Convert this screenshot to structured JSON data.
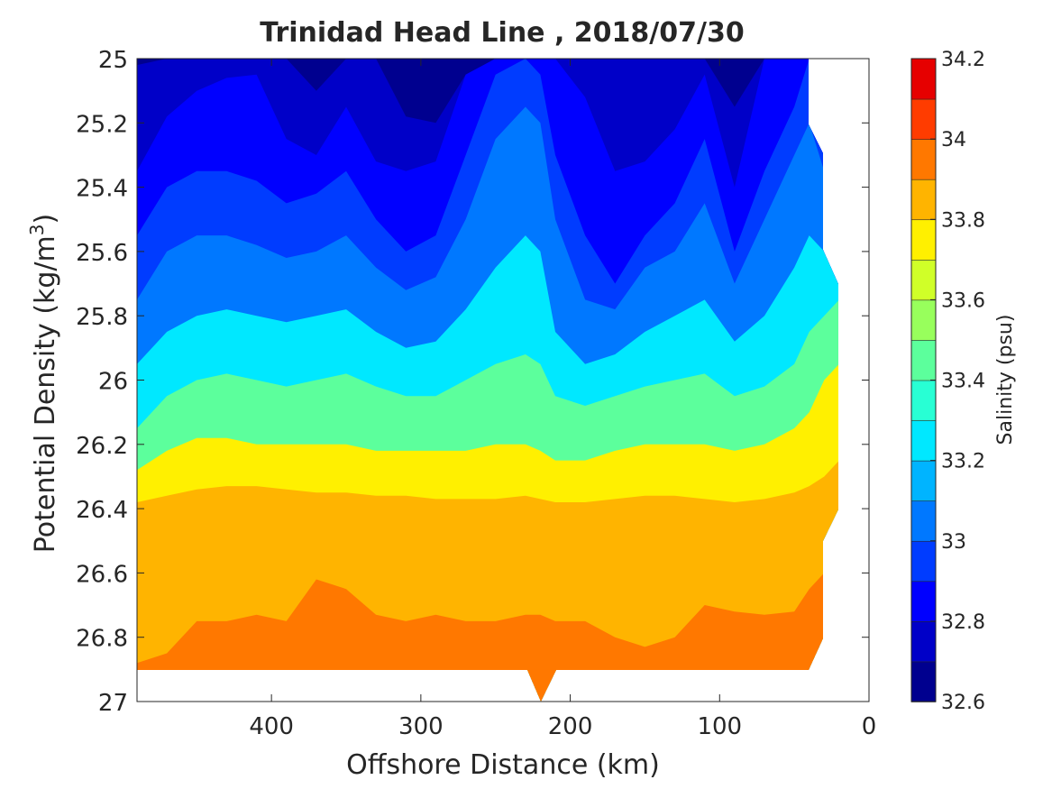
{
  "chart_data": {
    "type": "contour",
    "title": "Trinidad Head Line , 2018/07/30",
    "xlabel": "Offshore Distance (km)",
    "ylabel_main": "Potential Density (kg/m",
    "ylabel_sup": "3",
    "ylabel_close": ")",
    "xlim": [
      490,
      0
    ],
    "ylim": [
      25,
      27
    ],
    "y_reversed": true,
    "x_reversed": true,
    "xticks": [
      400,
      300,
      200,
      100,
      0
    ],
    "yticks": [
      25,
      25.2,
      25.4,
      25.6,
      25.8,
      26,
      26.2,
      26.4,
      26.6,
      26.8,
      27
    ],
    "colorbar": {
      "label": "Salinity (psu)",
      "ticks": [
        32.6,
        32.8,
        33,
        33.2,
        33.4,
        33.6,
        33.8,
        34,
        34.2
      ],
      "range": [
        32.6,
        34.2
      ],
      "levels": 16,
      "colormap": "jet",
      "colors": [
        "#00008f",
        "#0000c8",
        "#0000ff",
        "#003cff",
        "#0078ff",
        "#00b4ff",
        "#00e8ff",
        "#28ffd4",
        "#5cff9c",
        "#98ff5c",
        "#d0ff28",
        "#fff000",
        "#ffb400",
        "#ff7800",
        "#ff3c00",
        "#e60000"
      ]
    },
    "x": [
      490,
      470,
      450,
      430,
      410,
      390,
      370,
      350,
      330,
      310,
      290,
      270,
      250,
      230,
      220,
      210,
      190,
      170,
      150,
      130,
      110,
      90,
      70,
      50,
      40,
      30,
      20
    ],
    "contours": [
      {
        "level": 32.8,
        "y": [
          25.02,
          25.0,
          25.0,
          25.0,
          25.0,
          25.0,
          25.1,
          25.0,
          25.0,
          25.18,
          25.2,
          25.05,
          25.0,
          25.0,
          25.0,
          25.0,
          25.0,
          25.0,
          25.0,
          25.0,
          25.0,
          25.15,
          25.0,
          25.0,
          25.0,
          25.0,
          25.0
        ]
      },
      {
        "level": 32.9,
        "y": [
          25.35,
          25.18,
          25.1,
          25.06,
          25.05,
          25.25,
          25.3,
          25.15,
          25.32,
          25.35,
          25.32,
          25.05,
          25.0,
          25.0,
          25.0,
          25.0,
          25.12,
          25.35,
          25.32,
          25.22,
          25.05,
          25.4,
          25.0,
          25.0,
          25.0,
          25.0,
          25.0
        ]
      },
      {
        "level": 33.0,
        "y": [
          25.55,
          25.4,
          25.35,
          25.35,
          25.38,
          25.45,
          25.42,
          25.35,
          25.5,
          25.6,
          25.55,
          25.3,
          25.05,
          25.0,
          25.05,
          25.3,
          25.55,
          25.7,
          25.55,
          25.45,
          25.25,
          25.6,
          25.35,
          25.15,
          25.0,
          25.0,
          25.0
        ]
      },
      {
        "level": 33.1,
        "y": [
          25.75,
          25.6,
          25.55,
          25.55,
          25.58,
          25.62,
          25.6,
          25.55,
          25.65,
          25.72,
          25.68,
          25.5,
          25.25,
          25.15,
          25.2,
          25.5,
          25.75,
          25.78,
          25.65,
          25.6,
          25.45,
          25.7,
          25.5,
          25.3,
          25.2,
          25.35,
          25.7
        ]
      },
      {
        "level": 33.3,
        "y": [
          25.95,
          25.85,
          25.8,
          25.78,
          25.8,
          25.82,
          25.8,
          25.78,
          25.85,
          25.9,
          25.88,
          25.78,
          25.65,
          25.55,
          25.6,
          25.85,
          25.95,
          25.92,
          25.85,
          25.8,
          25.75,
          25.88,
          25.8,
          25.65,
          25.55,
          25.6,
          25.7
        ]
      },
      {
        "level": 33.5,
        "y": [
          26.15,
          26.05,
          26.0,
          25.98,
          26.0,
          26.02,
          26.0,
          25.98,
          26.02,
          26.05,
          26.05,
          26.0,
          25.95,
          25.92,
          25.95,
          26.05,
          26.08,
          26.05,
          26.02,
          26.0,
          25.98,
          26.05,
          26.02,
          25.95,
          25.85,
          25.8,
          25.75
        ]
      },
      {
        "level": 33.7,
        "y": [
          26.28,
          26.22,
          26.18,
          26.18,
          26.2,
          26.2,
          26.2,
          26.2,
          26.22,
          26.22,
          26.22,
          26.22,
          26.2,
          26.2,
          26.22,
          26.25,
          26.25,
          26.22,
          26.2,
          26.2,
          26.2,
          26.22,
          26.2,
          26.15,
          26.1,
          26.0,
          25.95
        ]
      },
      {
        "level": 33.9,
        "y": [
          26.38,
          26.36,
          26.34,
          26.33,
          26.33,
          26.34,
          26.35,
          26.35,
          26.36,
          26.36,
          26.37,
          26.37,
          26.37,
          26.36,
          26.37,
          26.38,
          26.38,
          26.37,
          26.36,
          26.36,
          26.37,
          26.38,
          26.37,
          26.35,
          26.33,
          26.3,
          26.25
        ]
      },
      {
        "level": 34.0,
        "y": [
          26.88,
          26.85,
          26.75,
          26.75,
          26.73,
          26.75,
          26.62,
          26.65,
          26.73,
          26.75,
          26.73,
          26.75,
          26.75,
          26.73,
          26.73,
          26.75,
          26.75,
          26.8,
          26.83,
          26.8,
          26.7,
          26.72,
          26.73,
          26.72,
          26.65,
          26.6,
          26.5
        ]
      }
    ]
  }
}
